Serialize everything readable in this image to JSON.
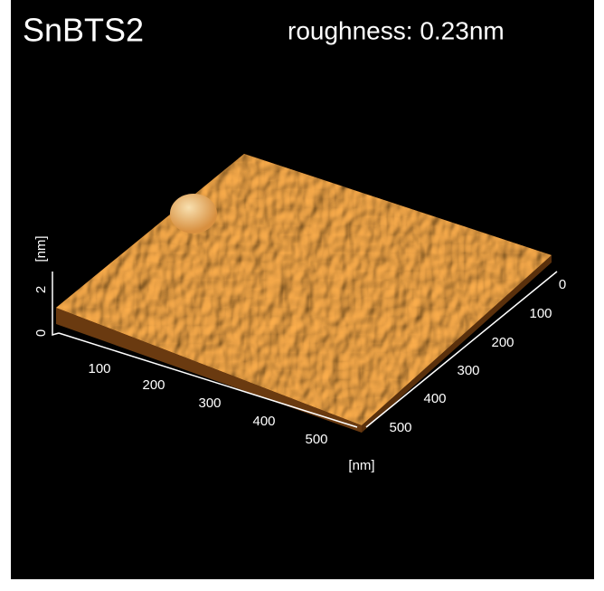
{
  "title": "SnBTS2",
  "annotation": "roughness: 0.23nm",
  "x_axis": {
    "ticks": [
      100,
      200,
      300,
      400,
      500
    ],
    "unit": "[nm]"
  },
  "y_axis": {
    "ticks": [
      0,
      100,
      200,
      300,
      400,
      500
    ]
  },
  "z_axis": {
    "ticks": [
      0,
      2
    ],
    "unit": "[nm]"
  }
}
